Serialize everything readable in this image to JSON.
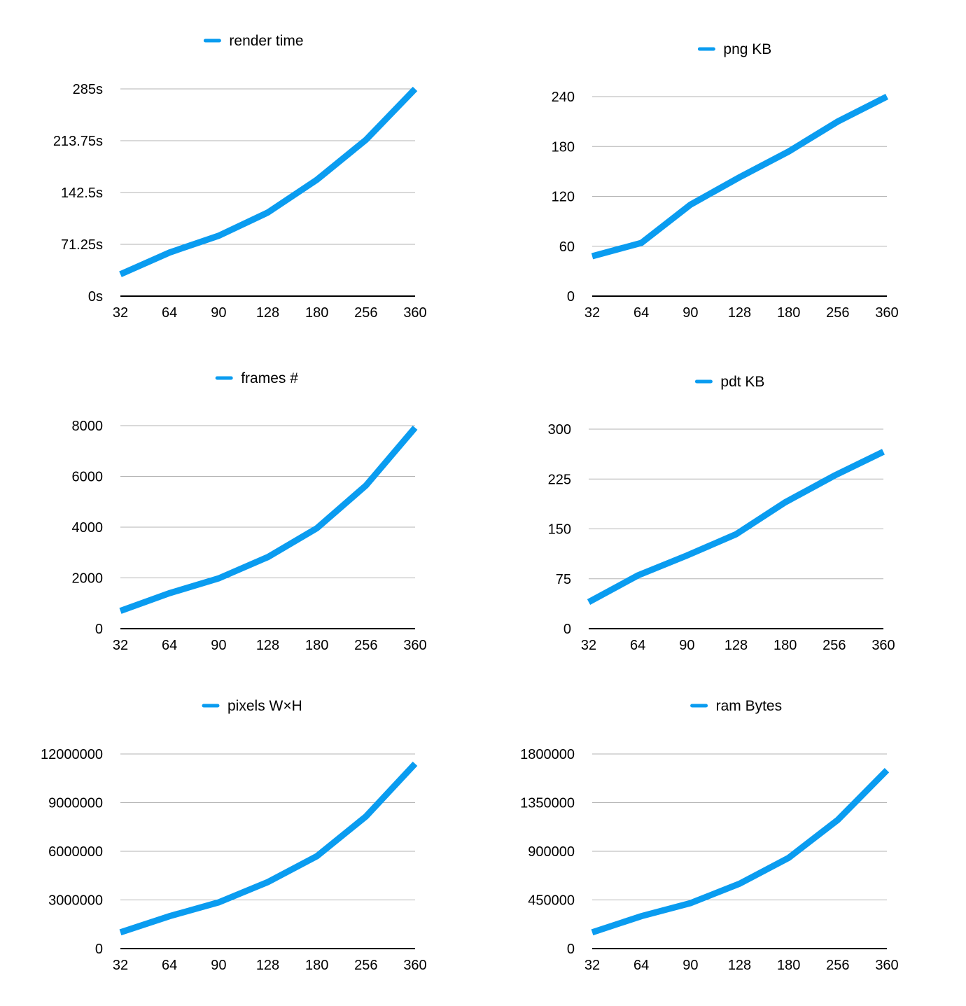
{
  "chart_data": [
    {
      "type": "line",
      "categories": [
        "32",
        "64",
        "90",
        "128",
        "180",
        "256",
        "360"
      ],
      "series": [
        {
          "name": "render time",
          "values": [
            30,
            60,
            83,
            115,
            160,
            215,
            285
          ]
        }
      ],
      "yticks": [
        "0s",
        "71.25s",
        "142.5s",
        "213.75s",
        "285s"
      ],
      "ylim": [
        0,
        285
      ],
      "grid": true,
      "legend": "top-center",
      "color": "#0a9cf0"
    },
    {
      "type": "line",
      "categories": [
        "32",
        "64",
        "90",
        "128",
        "180",
        "256",
        "360"
      ],
      "series": [
        {
          "name": "png KB",
          "values": [
            48,
            64,
            110,
            143,
            174,
            210,
            240
          ]
        }
      ],
      "yticks": [
        "0",
        "60",
        "120",
        "180",
        "240"
      ],
      "ylim": [
        0,
        240
      ],
      "grid": true,
      "legend": "top-center",
      "color": "#0a9cf0"
    },
    {
      "type": "line",
      "categories": [
        "32",
        "64",
        "90",
        "128",
        "180",
        "256",
        "360"
      ],
      "series": [
        {
          "name": "frames #",
          "values": [
            700,
            1400,
            1980,
            2820,
            3960,
            5640,
            7920
          ]
        }
      ],
      "yticks": [
        "0",
        "2000",
        "4000",
        "6000",
        "8000"
      ],
      "ylim": [
        0,
        8000
      ],
      "grid": true,
      "legend": "top-center",
      "color": "#0a9cf0"
    },
    {
      "type": "line",
      "categories": [
        "32",
        "64",
        "90",
        "128",
        "180",
        "256",
        "360"
      ],
      "series": [
        {
          "name": "pdt KB",
          "values": [
            40,
            80,
            110,
            142,
            190,
            230,
            266
          ]
        }
      ],
      "yticks": [
        "0",
        "75",
        "150",
        "225",
        "300"
      ],
      "ylim": [
        0,
        300
      ],
      "grid": true,
      "legend": "top-center",
      "color": "#0a9cf0"
    },
    {
      "type": "line",
      "categories": [
        "32",
        "64",
        "90",
        "128",
        "180",
        "256",
        "360"
      ],
      "series": [
        {
          "name": "pixels W×H",
          "values": [
            1000000,
            2000000,
            2850000,
            4100000,
            5700000,
            8150000,
            11400000
          ]
        }
      ],
      "yticks": [
        "0",
        "3000000",
        "6000000",
        "9000000",
        "12000000"
      ],
      "ylim": [
        0,
        12000000
      ],
      "grid": true,
      "legend": "top-center",
      "color": "#0a9cf0"
    },
    {
      "type": "line",
      "categories": [
        "32",
        "64",
        "90",
        "128",
        "180",
        "256",
        "360"
      ],
      "series": [
        {
          "name": "ram Bytes",
          "values": [
            150000,
            300000,
            420000,
            600000,
            840000,
            1190000,
            1650000
          ]
        }
      ],
      "yticks": [
        "0",
        "450000",
        "900000",
        "1350000",
        "1800000"
      ],
      "ylim": [
        0,
        1800000
      ],
      "grid": true,
      "legend": "top-center",
      "color": "#0a9cf0"
    }
  ]
}
